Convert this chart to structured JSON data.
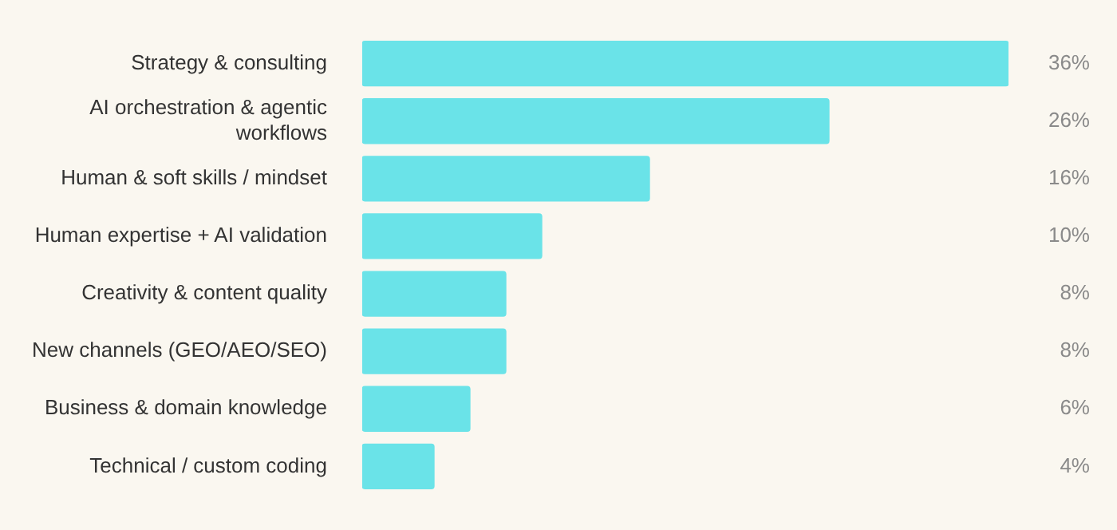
{
  "chart_data": {
    "type": "bar",
    "orientation": "horizontal",
    "categories": [
      "Strategy & consulting",
      "AI orchestration & agentic workflows",
      "Human & soft skills / mindset",
      "Human expertise + AI validation",
      "Creativity & content quality",
      "New channels (GEO/AEO/SEO)",
      "Business & domain knowledge",
      "Technical / custom coding"
    ],
    "values": [
      36,
      26,
      16,
      10,
      8,
      8,
      6,
      4
    ],
    "color": "#6ae3e8",
    "value_labels": [
      "36%",
      "26%",
      "16%",
      "10%",
      "8%",
      "8%",
      "6%",
      "4%"
    ],
    "legend": false,
    "tick_labels": "y"
  }
}
